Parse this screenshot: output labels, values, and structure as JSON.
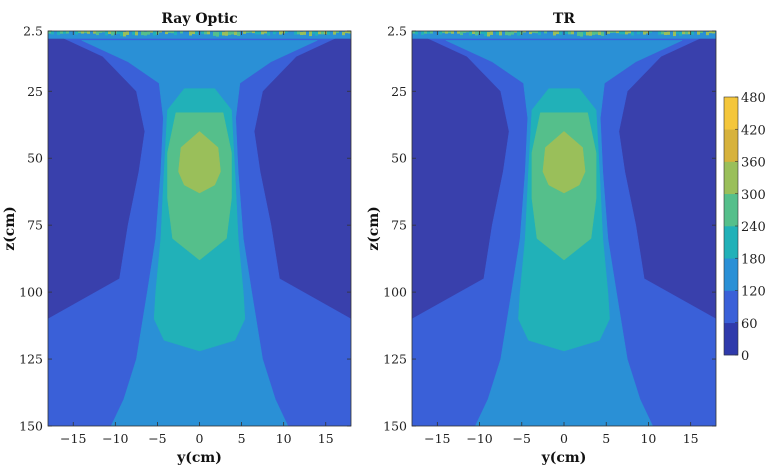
{
  "chart_data": [
    {
      "type": "heatmap",
      "subtype": "filled-contour",
      "title": "Ray Optic",
      "xlabel": "y(cm)",
      "ylabel": "z(cm)",
      "xlim": [
        -18,
        18
      ],
      "ylim": [
        150,
        2.5
      ],
      "y_axis_inverted": true,
      "xticks": [
        -15,
        -10,
        -5,
        0,
        5,
        10,
        15
      ],
      "yticks": [
        2.5,
        25,
        50,
        75,
        100,
        125,
        150
      ],
      "contour_levels": [
        {
          "level_range": [
            60,
            120
          ],
          "y_halfwidth_at_z": [
            [
              2.5,
              18
            ],
            [
              12,
              11.5
            ],
            [
              25,
              7.5
            ],
            [
              40,
              6.5
            ],
            [
              55,
              7.2
            ],
            [
              75,
              8.5
            ],
            [
              95,
              9.5
            ],
            [
              110,
              18
            ],
            [
              150,
              18
            ]
          ]
        },
        {
          "level_range": [
            120,
            180
          ],
          "y_halfwidth_at_z": [
            [
              6,
              14
            ],
            [
              14,
              8.5
            ],
            [
              22,
              4.8
            ],
            [
              35,
              4.3
            ],
            [
              55,
              4.6
            ],
            [
              80,
              5.2
            ],
            [
              100,
              6.2
            ],
            [
              125,
              7.5
            ],
            [
              140,
              9
            ],
            [
              150,
              10.5
            ]
          ]
        },
        {
          "level_range": [
            180,
            240
          ],
          "y_halfwidth_at_z": [
            [
              24,
              1.8
            ],
            [
              32,
              3.8
            ],
            [
              55,
              4.2
            ],
            [
              80,
              4.6
            ],
            [
              100,
              5.2
            ],
            [
              110,
              5.4
            ],
            [
              118,
              4.2
            ],
            [
              122,
              0
            ]
          ]
        },
        {
          "level_range": [
            240,
            300
          ],
          "y_halfwidth_at_z": [
            [
              33,
              2.8
            ],
            [
              48,
              3.8
            ],
            [
              65,
              3.8
            ],
            [
              80,
              3.2
            ],
            [
              88,
              0
            ]
          ]
        },
        {
          "level_range": [
            300,
            360
          ],
          "y_halfwidth_at_z": [
            [
              40,
              0
            ],
            [
              46,
              2.2
            ],
            [
              55,
              2.5
            ],
            [
              60,
              1.8
            ],
            [
              63,
              0
            ]
          ]
        }
      ],
      "surface_band": {
        "z_range": [
          2.5,
          5
        ],
        "max_level": 360,
        "description_level": "mixed high values at surface"
      }
    },
    {
      "type": "heatmap",
      "subtype": "filled-contour",
      "title": "TR",
      "xlabel": "y(cm)",
      "ylabel": "z(cm)",
      "xlim": [
        -18,
        18
      ],
      "ylim": [
        150,
        2.5
      ],
      "y_axis_inverted": true,
      "xticks": [
        -15,
        -10,
        -5,
        0,
        5,
        10,
        15
      ],
      "yticks": [
        2.5,
        25,
        50,
        75,
        100,
        125,
        150
      ],
      "contour_levels": [
        {
          "level_range": [
            60,
            120
          ],
          "y_halfwidth_at_z": [
            [
              2.5,
              18
            ],
            [
              12,
              11.5
            ],
            [
              25,
              7.5
            ],
            [
              40,
              6.5
            ],
            [
              55,
              7.2
            ],
            [
              75,
              8.5
            ],
            [
              95,
              9.5
            ],
            [
              110,
              18
            ],
            [
              150,
              18
            ]
          ]
        },
        {
          "level_range": [
            120,
            180
          ],
          "y_halfwidth_at_z": [
            [
              6,
              14
            ],
            [
              14,
              8.5
            ],
            [
              22,
              4.8
            ],
            [
              35,
              4.3
            ],
            [
              55,
              4.6
            ],
            [
              80,
              5.2
            ],
            [
              100,
              6.2
            ],
            [
              125,
              7.5
            ],
            [
              140,
              9
            ],
            [
              150,
              10.5
            ]
          ]
        },
        {
          "level_range": [
            180,
            240
          ],
          "y_halfwidth_at_z": [
            [
              24,
              1.8
            ],
            [
              32,
              3.8
            ],
            [
              55,
              4.2
            ],
            [
              80,
              4.6
            ],
            [
              100,
              5.2
            ],
            [
              110,
              5.4
            ],
            [
              118,
              4.2
            ],
            [
              122,
              0
            ]
          ]
        },
        {
          "level_range": [
            240,
            300
          ],
          "y_halfwidth_at_z": [
            [
              33,
              2.8
            ],
            [
              48,
              3.8
            ],
            [
              65,
              3.8
            ],
            [
              80,
              3.2
            ],
            [
              88,
              0
            ]
          ]
        },
        {
          "level_range": [
            300,
            360
          ],
          "y_halfwidth_at_z": [
            [
              40,
              0
            ],
            [
              46,
              2.2
            ],
            [
              55,
              2.5
            ],
            [
              60,
              1.8
            ],
            [
              63,
              0
            ]
          ]
        }
      ],
      "surface_band": {
        "z_range": [
          2.5,
          5
        ],
        "max_level": 360,
        "description_level": "mixed high values at surface"
      }
    }
  ],
  "colorbar": {
    "ticks": [
      0,
      60,
      120,
      180,
      240,
      300,
      360,
      420,
      480
    ],
    "range": [
      0,
      480
    ],
    "colors": [
      "#2f3aab",
      "#3a60d8",
      "#2a90d6",
      "#21b1b8",
      "#55bf8b",
      "#9abf5a",
      "#d7b23c",
      "#f4c63b",
      "#f5e524"
    ]
  },
  "background_color": "#3940ac"
}
